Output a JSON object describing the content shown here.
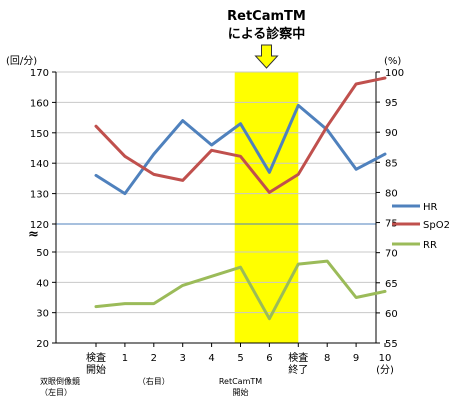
{
  "chart_data": {
    "type": "line",
    "annotation": {
      "line1": "RetCamTM",
      "line2": "による診察中"
    },
    "left_unit": "(回/分)",
    "right_unit": "(%)",
    "x_ticks": [
      "検査\n開始",
      "1",
      "2",
      "3",
      "4",
      "5",
      "6",
      "検査\n終了",
      "8",
      "9",
      "10\n(分)"
    ],
    "left_upper_ticks": [
      "120",
      "130",
      "140",
      "150",
      "160",
      "170"
    ],
    "left_lower_ticks": [
      "20",
      "30",
      "40",
      "50"
    ],
    "right_ticks": [
      "55",
      "60",
      "65",
      "70",
      "75",
      "80",
      "85",
      "90",
      "95",
      "100"
    ],
    "break_symbol": "≈",
    "upper_ylim": [
      120,
      170
    ],
    "lower_ylim": [
      20,
      50
    ],
    "right_ylim": [
      55,
      100
    ],
    "highlight_x_range": [
      4.8,
      7.0
    ],
    "highlight_color": "#ffff00",
    "series": [
      {
        "name": "HR",
        "axis": "left",
        "color": "#4f81bd",
        "values": [
          136,
          130,
          143,
          154,
          146,
          153,
          137,
          159,
          151,
          138,
          143
        ]
      },
      {
        "name": "SpO2",
        "axis": "right",
        "color": "#c0504d",
        "values": [
          91,
          86,
          83,
          82,
          87,
          86,
          80,
          83,
          91,
          98,
          99
        ]
      },
      {
        "name": "RR",
        "axis": "left",
        "color": "#9bbb59",
        "values": [
          32,
          33,
          33,
          39,
          42,
          45,
          28,
          46,
          47,
          35,
          37
        ]
      }
    ],
    "notes": [
      {
        "text": "双眼倒像鏡\n（左目）",
        "x": 0
      },
      {
        "text": "（右目）",
        "x": 2
      },
      {
        "text": "RetCamTM\n開始",
        "x": 5
      }
    ]
  }
}
